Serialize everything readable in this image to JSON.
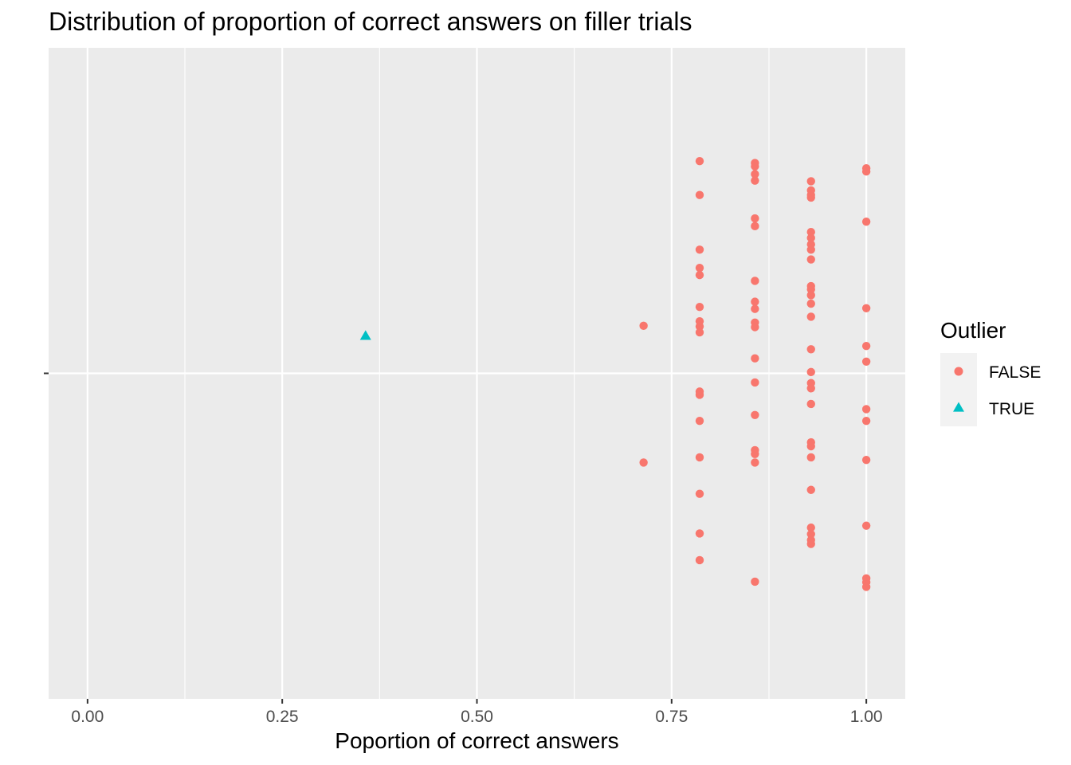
{
  "chart_data": {
    "type": "scatter",
    "title": "Distribution of proportion of correct answers on filler trials",
    "xlabel": "Poportion of correct answers",
    "ylabel": "",
    "xlim": [
      -0.05,
      1.05
    ],
    "ylim": [
      -0.5,
      0.5
    ],
    "x_ticks": [
      0.0,
      0.25,
      0.5,
      0.75,
      1.0
    ],
    "x_tick_labels": [
      "0.00",
      "0.25",
      "0.50",
      "0.75",
      "1.00"
    ],
    "y_tick_labels": [
      ""
    ],
    "grid": true,
    "legend": {
      "title": "Outlier",
      "position": "right"
    },
    "series": [
      {
        "name": "FALSE",
        "color": "#F8766D",
        "marker": "circle",
        "points": [
          {
            "x": 0.714,
            "y": 0.073
          },
          {
            "x": 0.714,
            "y": -0.137
          },
          {
            "x": 0.786,
            "y": 0.326
          },
          {
            "x": 0.786,
            "y": 0.274
          },
          {
            "x": 0.786,
            "y": 0.19
          },
          {
            "x": 0.786,
            "y": 0.162
          },
          {
            "x": 0.786,
            "y": 0.151
          },
          {
            "x": 0.786,
            "y": 0.102
          },
          {
            "x": 0.786,
            "y": 0.08
          },
          {
            "x": 0.786,
            "y": 0.072
          },
          {
            "x": 0.786,
            "y": 0.063
          },
          {
            "x": 0.786,
            "y": -0.028
          },
          {
            "x": 0.786,
            "y": -0.033
          },
          {
            "x": 0.786,
            "y": -0.073
          },
          {
            "x": 0.786,
            "y": -0.129
          },
          {
            "x": 0.786,
            "y": -0.185
          },
          {
            "x": 0.786,
            "y": -0.246
          },
          {
            "x": 0.786,
            "y": -0.287
          },
          {
            "x": 0.857,
            "y": 0.323
          },
          {
            "x": 0.857,
            "y": 0.318
          },
          {
            "x": 0.857,
            "y": 0.306
          },
          {
            "x": 0.857,
            "y": 0.296
          },
          {
            "x": 0.857,
            "y": 0.238
          },
          {
            "x": 0.857,
            "y": 0.226
          },
          {
            "x": 0.857,
            "y": 0.142
          },
          {
            "x": 0.857,
            "y": 0.11
          },
          {
            "x": 0.857,
            "y": 0.099
          },
          {
            "x": 0.857,
            "y": 0.078
          },
          {
            "x": 0.857,
            "y": 0.071
          },
          {
            "x": 0.857,
            "y": 0.023
          },
          {
            "x": 0.857,
            "y": -0.014
          },
          {
            "x": 0.857,
            "y": -0.064
          },
          {
            "x": 0.857,
            "y": -0.118
          },
          {
            "x": 0.857,
            "y": -0.124
          },
          {
            "x": 0.857,
            "y": -0.137
          },
          {
            "x": 0.857,
            "y": -0.32
          },
          {
            "x": 0.929,
            "y": 0.295
          },
          {
            "x": 0.929,
            "y": 0.281
          },
          {
            "x": 0.929,
            "y": 0.274
          },
          {
            "x": 0.929,
            "y": 0.27
          },
          {
            "x": 0.929,
            "y": 0.217
          },
          {
            "x": 0.929,
            "y": 0.208
          },
          {
            "x": 0.929,
            "y": 0.198
          },
          {
            "x": 0.929,
            "y": 0.19
          },
          {
            "x": 0.929,
            "y": 0.175
          },
          {
            "x": 0.929,
            "y": 0.134
          },
          {
            "x": 0.929,
            "y": 0.129
          },
          {
            "x": 0.929,
            "y": 0.12
          },
          {
            "x": 0.929,
            "y": 0.107
          },
          {
            "x": 0.929,
            "y": 0.087
          },
          {
            "x": 0.929,
            "y": 0.037
          },
          {
            "x": 0.929,
            "y": 0.002
          },
          {
            "x": 0.929,
            "y": -0.015
          },
          {
            "x": 0.929,
            "y": -0.023
          },
          {
            "x": 0.929,
            "y": -0.047
          },
          {
            "x": 0.929,
            "y": -0.106
          },
          {
            "x": 0.929,
            "y": -0.112
          },
          {
            "x": 0.929,
            "y": -0.129
          },
          {
            "x": 0.929,
            "y": -0.179
          },
          {
            "x": 0.929,
            "y": -0.237
          },
          {
            "x": 0.929,
            "y": -0.247
          },
          {
            "x": 0.929,
            "y": -0.256
          },
          {
            "x": 0.929,
            "y": -0.262
          },
          {
            "x": 1.0,
            "y": 0.315
          },
          {
            "x": 1.0,
            "y": 0.31
          },
          {
            "x": 1.0,
            "y": 0.233
          },
          {
            "x": 1.0,
            "y": 0.1
          },
          {
            "x": 1.0,
            "y": 0.042
          },
          {
            "x": 1.0,
            "y": 0.018
          },
          {
            "x": 1.0,
            "y": -0.055
          },
          {
            "x": 1.0,
            "y": -0.073
          },
          {
            "x": 1.0,
            "y": -0.133
          },
          {
            "x": 1.0,
            "y": -0.234
          },
          {
            "x": 1.0,
            "y": -0.315
          },
          {
            "x": 1.0,
            "y": -0.321
          },
          {
            "x": 1.0,
            "y": -0.328
          }
        ]
      },
      {
        "name": "TRUE",
        "color": "#00BFC4",
        "marker": "triangle",
        "points": [
          {
            "x": 0.357,
            "y": 0.057
          }
        ]
      }
    ]
  }
}
